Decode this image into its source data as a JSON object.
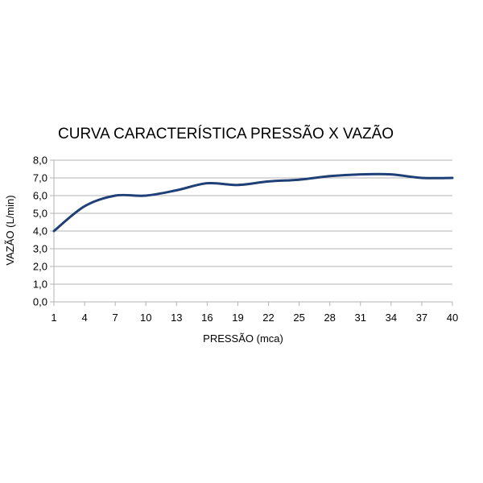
{
  "chart_data": {
    "type": "line",
    "title": "CURVA CARACTERÍSTICA PRESSÃO X VAZÃO",
    "xlabel": "PRESSÃO (mca)",
    "ylabel": "VAZÃO (L/min)",
    "x_tick_labels": [
      "1",
      "4",
      "7",
      "10",
      "13",
      "16",
      "19",
      "22",
      "25",
      "28",
      "31",
      "34",
      "37",
      "40"
    ],
    "y_tick_labels": [
      "0,0",
      "1,0",
      "2,0",
      "3,0",
      "4,0",
      "5,0",
      "6,0",
      "7,0",
      "8,0"
    ],
    "xlim": [
      1,
      40
    ],
    "ylim": [
      0,
      8
    ],
    "grid": "horizontal",
    "series": [
      {
        "color": "#1f3f77",
        "x": [
          1,
          4,
          7,
          10,
          13,
          16,
          19,
          22,
          25,
          28,
          31,
          34,
          37,
          40
        ],
        "y": [
          4.0,
          5.4,
          6.0,
          6.0,
          6.3,
          6.7,
          6.6,
          6.8,
          6.9,
          7.1,
          7.2,
          7.2,
          7.0,
          7.0
        ]
      }
    ]
  }
}
